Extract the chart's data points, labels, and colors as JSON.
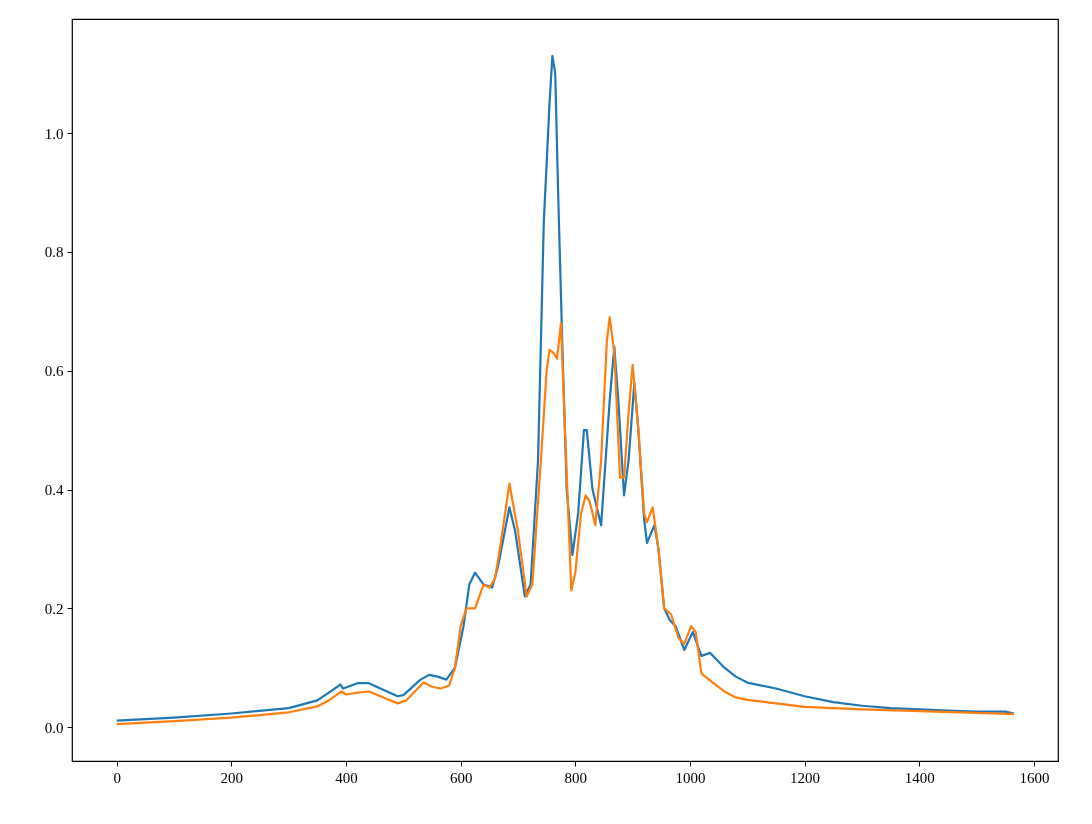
{
  "chart_data": {
    "type": "line",
    "xlim": [
      -78,
      1642
    ],
    "ylim": [
      -0.057,
      1.192
    ],
    "xticks": [
      0,
      200,
      400,
      600,
      800,
      1000,
      1200,
      1400,
      1600
    ],
    "yticks": [
      {
        "value": 0,
        "label": "0.0"
      },
      {
        "value": 0.2,
        "label": "0.2"
      },
      {
        "value": 0.4,
        "label": "0.4"
      },
      {
        "value": 0.6,
        "label": "0.6"
      },
      {
        "value": 0.8,
        "label": "0.8"
      },
      {
        "value": 1.0,
        "label": "1.0"
      }
    ],
    "grid": false,
    "legend": false,
    "marker": "none",
    "line_style": "solid",
    "series": [
      {
        "color": "#1f77b4",
        "x": [
          0,
          100,
          200,
          300,
          350,
          370,
          385,
          390,
          395,
          420,
          440,
          460,
          490,
          500,
          530,
          545,
          560,
          575,
          590,
          605,
          615,
          625,
          640,
          655,
          665,
          685,
          695,
          712,
          722,
          735,
          745,
          755,
          760,
          765,
          770,
          778,
          785,
          795,
          805,
          815,
          820,
          830,
          845,
          860,
          868,
          875,
          885,
          893,
          903,
          910,
          920,
          925,
          938,
          945,
          955,
          965,
          975,
          990,
          1005,
          1020,
          1035,
          1045,
          1060,
          1080,
          1100,
          1150,
          1200,
          1250,
          1300,
          1350,
          1400,
          1450,
          1500,
          1550,
          1565
        ],
        "values": [
          0.011,
          0.016,
          0.023,
          0.032,
          0.045,
          0.058,
          0.068,
          0.072,
          0.065,
          0.074,
          0.074,
          0.065,
          0.052,
          0.054,
          0.08,
          0.088,
          0.085,
          0.08,
          0.1,
          0.17,
          0.24,
          0.26,
          0.24,
          0.235,
          0.27,
          0.37,
          0.33,
          0.22,
          0.24,
          0.45,
          0.85,
          1.05,
          1.13,
          1.1,
          0.9,
          0.62,
          0.4,
          0.29,
          0.36,
          0.5,
          0.5,
          0.4,
          0.34,
          0.55,
          0.64,
          0.55,
          0.39,
          0.45,
          0.58,
          0.5,
          0.35,
          0.31,
          0.34,
          0.3,
          0.2,
          0.18,
          0.17,
          0.13,
          0.16,
          0.12,
          0.125,
          0.115,
          0.1,
          0.085,
          0.075,
          0.065,
          0.052,
          0.042,
          0.036,
          0.032,
          0.03,
          0.028,
          0.026,
          0.026,
          0.023
        ]
      },
      {
        "color": "#ff7f0e",
        "x": [
          0,
          100,
          200,
          300,
          350,
          370,
          385,
          392,
          400,
          420,
          440,
          460,
          490,
          505,
          520,
          535,
          550,
          565,
          580,
          590,
          600,
          610,
          625,
          640,
          650,
          660,
          670,
          685,
          700,
          715,
          725,
          740,
          750,
          755,
          762,
          768,
          775,
          782,
          793,
          800,
          810,
          818,
          825,
          835,
          845,
          855,
          860,
          868,
          878,
          885,
          893,
          900,
          910,
          920,
          925,
          935,
          945,
          955,
          967,
          980,
          990,
          1002,
          1010,
          1020,
          1040,
          1060,
          1080,
          1100,
          1150,
          1200,
          1300,
          1400,
          1500,
          1565
        ],
        "values": [
          0.005,
          0.01,
          0.016,
          0.025,
          0.035,
          0.045,
          0.055,
          0.06,
          0.055,
          0.058,
          0.06,
          0.052,
          0.04,
          0.045,
          0.06,
          0.075,
          0.068,
          0.065,
          0.07,
          0.1,
          0.17,
          0.2,
          0.2,
          0.24,
          0.235,
          0.25,
          0.31,
          0.41,
          0.33,
          0.22,
          0.24,
          0.45,
          0.6,
          0.635,
          0.63,
          0.62,
          0.68,
          0.5,
          0.23,
          0.26,
          0.36,
          0.39,
          0.38,
          0.34,
          0.45,
          0.65,
          0.69,
          0.63,
          0.42,
          0.42,
          0.53,
          0.61,
          0.5,
          0.36,
          0.345,
          0.37,
          0.3,
          0.2,
          0.19,
          0.15,
          0.14,
          0.17,
          0.16,
          0.09,
          0.075,
          0.06,
          0.05,
          0.046,
          0.04,
          0.034,
          0.03,
          0.027,
          0.024,
          0.022
        ]
      }
    ]
  }
}
